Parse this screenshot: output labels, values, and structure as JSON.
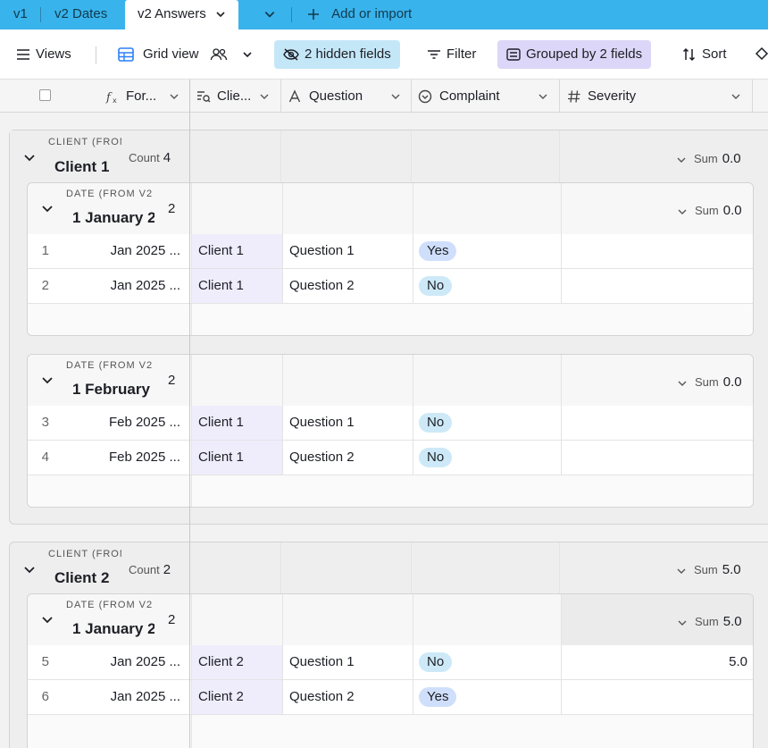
{
  "tabs": {
    "v1": "v1",
    "v2_dates": "v2 Dates",
    "v2_answers": "v2 Answers",
    "add_import": "Add or import"
  },
  "toolbar": {
    "views": "Views",
    "grid_view": "Grid view",
    "hidden_fields": "2 hidden fields",
    "filter": "Filter",
    "grouped": "Grouped by 2 fields",
    "sort": "Sort"
  },
  "columns": {
    "formula": "For...",
    "client": "Clie...",
    "question": "Question",
    "complaint": "Complaint",
    "severity": "Severity"
  },
  "group_labels": {
    "client_field": "CLIENT (FROM",
    "date_field": "DATE (FROM V2",
    "count_label": "Count",
    "sum_label": "Sum"
  },
  "groups": [
    {
      "name": "Client 1",
      "count": "4",
      "sum": "0.0",
      "subgroups": [
        {
          "name": "1 January 2",
          "count": "2",
          "sum": "0.0",
          "rows": [
            {
              "num": "1",
              "formula": "Jan 2025 ...",
              "client": "Client 1",
              "question": "Question 1",
              "complaint": "Yes",
              "severity": ""
            },
            {
              "num": "2",
              "formula": "Jan 2025 ...",
              "client": "Client 1",
              "question": "Question 2",
              "complaint": "No",
              "severity": ""
            }
          ]
        },
        {
          "name": "1 February",
          "count": "2",
          "sum": "0.0",
          "rows": [
            {
              "num": "3",
              "formula": "Feb 2025 ...",
              "client": "Client 1",
              "question": "Question 1",
              "complaint": "No",
              "severity": ""
            },
            {
              "num": "4",
              "formula": "Feb 2025 ...",
              "client": "Client 1",
              "question": "Question 2",
              "complaint": "No",
              "severity": ""
            }
          ]
        }
      ]
    },
    {
      "name": "Client 2",
      "count": "2",
      "sum": "5.0",
      "subgroups": [
        {
          "name": "1 January 2",
          "count": "2",
          "sum": "5.0",
          "rows": [
            {
              "num": "5",
              "formula": "Jan 2025 ...",
              "client": "Client 2",
              "question": "Question 1",
              "complaint": "No",
              "severity": "5.0"
            },
            {
              "num": "6",
              "formula": "Jan 2025 ...",
              "client": "Client 2",
              "question": "Question 2",
              "complaint": "Yes",
              "severity": ""
            }
          ]
        }
      ]
    }
  ],
  "colors": {
    "tabbar": "#39b3ec",
    "hidden_fields_bg": "#c4e7f8",
    "grouped_bg": "#dcd6f8",
    "tag_yes": "#cfdffb",
    "tag_no": "#cde9f7",
    "client_cell": "#efedfc"
  }
}
